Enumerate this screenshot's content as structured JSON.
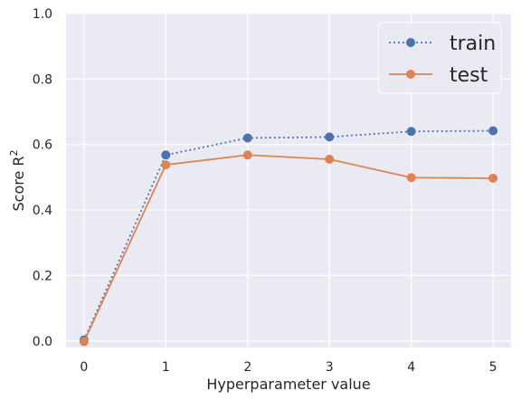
{
  "chart_data": {
    "type": "line",
    "xlabel": "Hyperparameter value",
    "ylabel_base": "Score R",
    "ylabel_superscript": "2",
    "x": [
      0,
      1,
      2,
      3,
      4,
      5
    ],
    "xticks": [
      "0",
      "1",
      "2",
      "3",
      "4",
      "5"
    ],
    "yticks": [
      "0.0",
      "0.2",
      "0.4",
      "0.6",
      "0.8",
      "1.0"
    ],
    "xlim": [
      -0.22,
      5.22
    ],
    "ylim": [
      -0.02,
      1.0
    ],
    "grid": true,
    "legend_position": "top-right",
    "series": [
      {
        "name": "train",
        "values": [
          0.003,
          0.568,
          0.62,
          0.623,
          0.64,
          0.642
        ],
        "color": "#4C72B0",
        "linestyle": "dotted",
        "marker": "circle"
      },
      {
        "name": "test",
        "values": [
          -0.002,
          0.538,
          0.568,
          0.555,
          0.499,
          0.497
        ],
        "color": "#DD8452",
        "linestyle": "solid",
        "marker": "circle"
      }
    ]
  }
}
